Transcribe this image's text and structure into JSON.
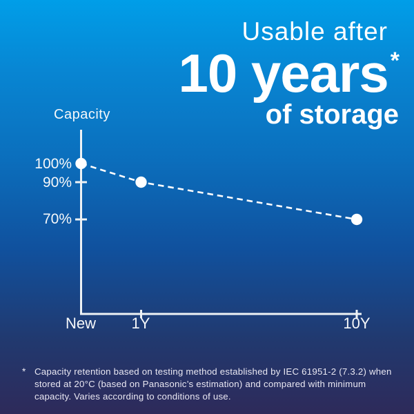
{
  "headline": {
    "line1": "Usable after",
    "line2": "10 years",
    "marker": "*",
    "line3": "of storage"
  },
  "chart_data": {
    "type": "line",
    "title": "Usable after 10 years of storage",
    "ylabel": "Capacity",
    "x_categories": [
      "New",
      "1Y",
      "10Y"
    ],
    "series": [
      {
        "name": "Capacity retention",
        "values": [
          100,
          90,
          70
        ]
      }
    ],
    "y_tick_labels": [
      "100%",
      "90%",
      "70%"
    ],
    "line_style": "dashed",
    "marker": "circle",
    "grid": false,
    "legend": false,
    "colors": {
      "line": "#ffffff",
      "marker": "#ffffff",
      "axis": "#eef2f5"
    }
  },
  "footnote": {
    "marker": "*",
    "text": "Capacity retention based on testing method established by IEC 61951-2 (7.3.2) when stored at 20°C (based on Panasonic’s estimation) and compared with minimum capacity. Varies according to conditions of use."
  },
  "colors": {
    "bg_top": "#009ee8",
    "bg_bottom": "#2e2a5a",
    "text": "#ffffff"
  }
}
